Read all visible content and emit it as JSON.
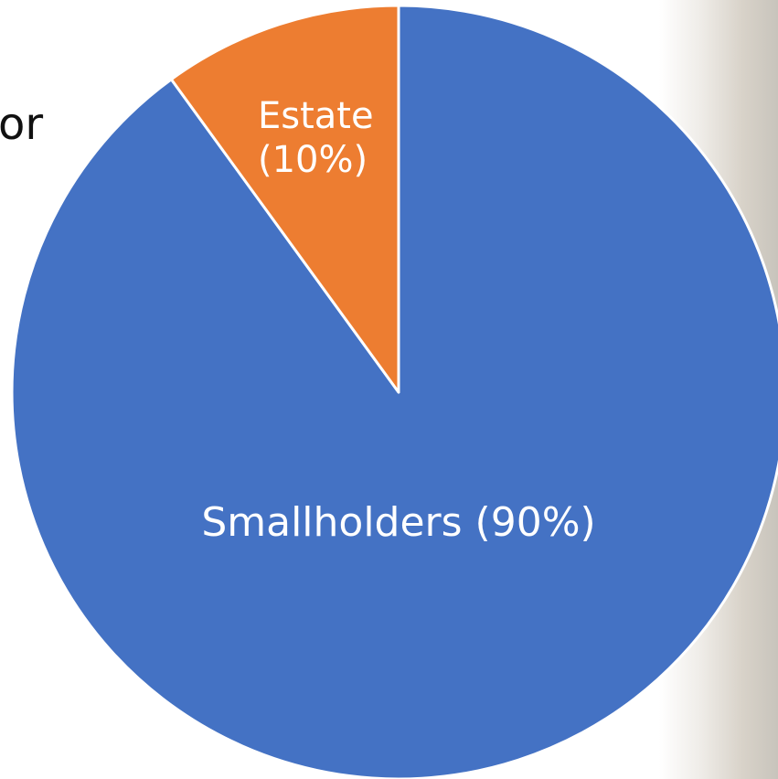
{
  "backdrop": {
    "clipped_text": "or"
  },
  "chart_data": {
    "type": "pie",
    "slices": [
      {
        "label": "Smallholders (90%)",
        "value": 90,
        "color": "#4472C4"
      },
      {
        "label_lines": [
          "Estate",
          "(10%)"
        ],
        "value": 10,
        "color": "#ED7D31"
      }
    ],
    "slice_border_color": "#FFFFFF",
    "legend": "none"
  }
}
